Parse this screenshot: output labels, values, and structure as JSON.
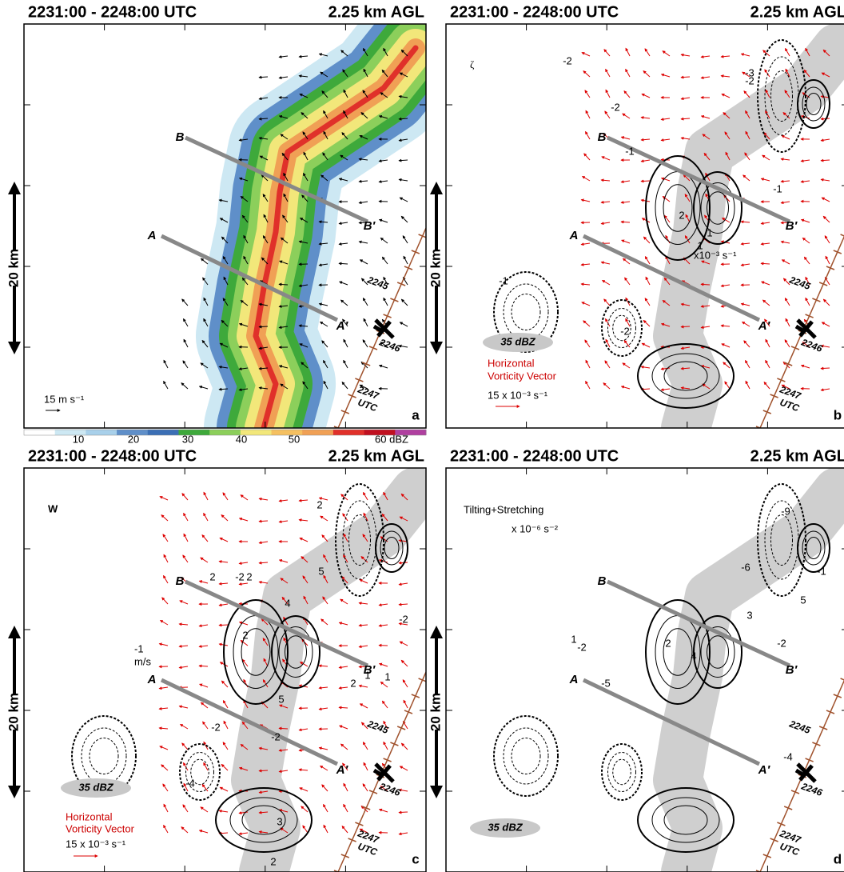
{
  "figure": {
    "panels": [
      {
        "header": {
          "time": "2231:00 - 2248:00 UTC",
          "level": "2.25 km AGL"
        },
        "letter": "a",
        "scale": "20 km",
        "section_labels": [
          "A",
          "A′",
          "B",
          "B′"
        ],
        "track_labels": [
          "2245",
          "2246",
          "2247",
          "UTC"
        ],
        "texts": [
          "15 m s⁻¹"
        ],
        "contour_labels": []
      },
      {
        "header": {
          "time": "2231:00 - 2248:00 UTC",
          "level": "2.25 km AGL"
        },
        "letter": "b",
        "scale": "20 km",
        "section_labels": [
          "A",
          "A′",
          "B",
          "B′"
        ],
        "track_labels": [
          "2245",
          "2246",
          "2247",
          "UTC"
        ],
        "texts": [
          "ζ",
          "35 dBZ",
          "Horizontal",
          "Vorticity Vector",
          "15 x 10⁻³ s⁻¹",
          "x10⁻³ s⁻¹"
        ],
        "contour_labels": [
          "-2",
          "-3",
          "-2",
          "-2",
          "-1",
          "1",
          "2",
          "1",
          "-1",
          "-1",
          "-2"
        ]
      },
      {
        "header": {
          "time": "2231:00 - 2248:00 UTC",
          "level": "2.25 km AGL"
        },
        "letter": "c",
        "scale": "20 km",
        "section_labels": [
          "A",
          "A′",
          "B",
          "B′"
        ],
        "track_labels": [
          "2245",
          "2246",
          "2247",
          "UTC"
        ],
        "texts": [
          "W",
          "-1",
          "m/s",
          "35 dBZ",
          "Horizontal",
          "Vorticity Vector",
          "15 x 10⁻³ s⁻¹"
        ],
        "contour_labels": [
          "2",
          "5",
          "-2",
          "2",
          "2",
          "4",
          "2",
          "1",
          "5",
          "-2",
          "2",
          "1",
          "-2",
          "-2",
          "-4",
          "3",
          "2"
        ]
      },
      {
        "header": {
          "time": "2231:00 - 2248:00 UTC",
          "level": "2.25 km AGL"
        },
        "letter": "d",
        "scale": "20 km",
        "section_labels": [
          "A",
          "A′",
          "B",
          "B′"
        ],
        "track_labels": [
          "2245",
          "2246",
          "2247",
          "UTC"
        ],
        "texts": [
          "Tilting+Stretching",
          "x 10⁻⁶ s⁻²",
          "35 dBZ"
        ],
        "contour_labels": [
          "-9",
          "-6",
          "5",
          "4",
          "3",
          "-5",
          "-2",
          "2",
          "-2",
          "-4",
          "-1",
          "1"
        ]
      }
    ],
    "colorbar": {
      "labels": [
        "10",
        "20",
        "30",
        "40",
        "50",
        "60 dBZ"
      ]
    }
  }
}
